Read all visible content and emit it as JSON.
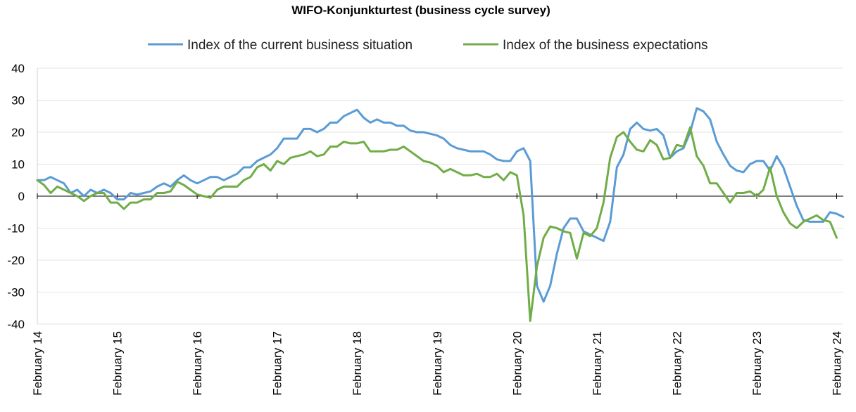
{
  "chart_data": {
    "type": "line",
    "title": "WIFO-Konjunkturtest (business cycle survey)",
    "ylim": [
      -40,
      40
    ],
    "yticks": [
      -40,
      -30,
      -20,
      -10,
      0,
      10,
      20,
      30,
      40
    ],
    "x_start": "2014-02",
    "x_end": "2024-02",
    "xtick_labels": [
      "February 14",
      "February 15",
      "February 16",
      "February 17",
      "February 18",
      "February 19",
      "February 20",
      "February 21",
      "February 22",
      "February 23",
      "February 24"
    ],
    "grid": true,
    "legend_position": "top",
    "series": [
      {
        "name": "Index of the current business situation",
        "color": "#5b9bd5",
        "values": [
          5,
          5,
          6,
          5,
          4,
          1,
          2,
          0,
          2,
          1,
          2,
          1,
          -1,
          -1,
          1,
          0.5,
          1,
          1.5,
          3,
          4,
          3,
          5,
          6.5,
          5,
          4,
          5,
          6,
          6,
          5,
          6,
          7,
          9,
          9,
          11,
          12,
          13,
          15,
          18,
          18,
          18,
          21,
          21,
          20,
          21,
          23,
          23,
          25,
          26,
          27,
          24.5,
          23,
          24,
          23,
          23,
          22,
          22,
          20.5,
          20,
          20,
          19.5,
          19,
          18,
          16,
          15,
          14.5,
          14,
          14,
          14,
          13,
          11.5,
          11,
          11,
          14,
          15,
          11,
          -28,
          -33,
          -28,
          -18,
          -10,
          -7,
          -7,
          -11,
          -12,
          -13,
          -14,
          -8,
          9,
          13,
          21,
          23,
          21,
          20.5,
          21,
          19,
          12,
          14,
          15,
          20,
          27.5,
          26.5,
          24,
          17,
          13,
          9.5,
          8,
          7.5,
          10,
          11,
          11,
          8,
          12.5,
          9,
          3,
          -3,
          -7.5,
          -8,
          -8,
          -8,
          -5,
          -5.5,
          -6.5
        ]
      },
      {
        "name": "Index of the business expectations",
        "color": "#70ad47",
        "values": [
          5,
          3.5,
          1,
          3,
          2,
          1,
          0,
          -1.5,
          0,
          1,
          1,
          -2,
          -2,
          -4,
          -2,
          -2,
          -1,
          -1,
          1,
          1,
          1.5,
          4.5,
          3.5,
          2,
          0.5,
          0,
          -0.5,
          2,
          3,
          3,
          3,
          5,
          6,
          9,
          10,
          8,
          11,
          10,
          12,
          12.5,
          13,
          14,
          12.5,
          13,
          15.5,
          15.5,
          17,
          16.5,
          16.5,
          17,
          14,
          14,
          14,
          14.5,
          14.5,
          15.5,
          14,
          12.5,
          11,
          10.5,
          9.5,
          7.5,
          8.5,
          7.5,
          6.5,
          6.5,
          7,
          6,
          6,
          7,
          5,
          7.5,
          6.5,
          -6,
          -39,
          -22,
          -13,
          -9.5,
          -10,
          -11,
          -11.5,
          -19.5,
          -11.5,
          -12.5,
          -10,
          -2,
          12,
          18.5,
          20,
          17,
          14.5,
          14,
          17.5,
          16,
          11.5,
          12,
          16,
          15.5,
          21.5,
          12.5,
          9.5,
          4,
          4,
          1,
          -2,
          1,
          1,
          1.5,
          0,
          2,
          9,
          0,
          -5,
          -8.5,
          -10,
          -8,
          -7,
          -6,
          -7.5,
          -8,
          -13
        ]
      }
    ]
  }
}
